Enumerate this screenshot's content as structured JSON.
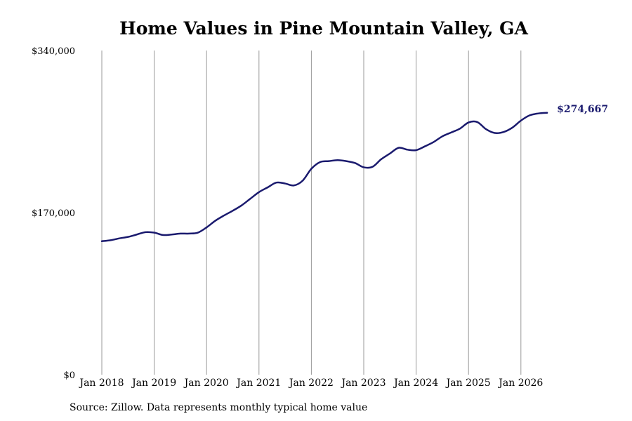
{
  "chart_data": {
    "type": "line",
    "title": "Home Values in Pine Mountain Valley, GA",
    "xlabel": "",
    "ylabel": "",
    "ylim": [
      0,
      340000
    ],
    "y_ticks": [
      "$0",
      "$170,000",
      "$340,000"
    ],
    "y_tick_values": [
      0,
      170000,
      340000
    ],
    "x_ticks": [
      "Jan 2018",
      "Jan 2019",
      "Jan 2020",
      "Jan 2021",
      "Jan 2022",
      "Jan 2023",
      "Jan 2024",
      "Jan 2025",
      "Jan 2026"
    ],
    "grid": "vertical",
    "line_color": "#1a1a6e",
    "grid_color": "#999999",
    "end_label": "$274,667",
    "series": [
      {
        "x": [
          "2018-01",
          "2018-03",
          "2018-05",
          "2018-07",
          "2018-09",
          "2018-11",
          "2019-01",
          "2019-03",
          "2019-05",
          "2019-07",
          "2019-09",
          "2019-11",
          "2020-01",
          "2020-03",
          "2020-05",
          "2020-07",
          "2020-09",
          "2020-11",
          "2021-01",
          "2021-03",
          "2021-05",
          "2021-07",
          "2021-09",
          "2021-11",
          "2022-01",
          "2022-03",
          "2022-05",
          "2022-07",
          "2022-09",
          "2022-11",
          "2023-01",
          "2023-03",
          "2023-05",
          "2023-07",
          "2023-09",
          "2023-11",
          "2024-01",
          "2024-03",
          "2024-05",
          "2024-07",
          "2024-09",
          "2024-11",
          "2025-01",
          "2025-03",
          "2025-05",
          "2025-07",
          "2025-09",
          "2025-11",
          "2026-01",
          "2026-03",
          "2026-05",
          "2026-07"
        ],
        "values": [
          140000,
          141000,
          143000,
          144500,
          147000,
          149500,
          149000,
          146500,
          147000,
          148000,
          148000,
          149000,
          154500,
          161500,
          167000,
          172000,
          177500,
          184500,
          191500,
          196500,
          201500,
          200500,
          198500,
          203500,
          216000,
          223000,
          224000,
          225000,
          224000,
          222000,
          217500,
          218000,
          226000,
          232000,
          238000,
          236000,
          235500,
          239500,
          244000,
          250000,
          254000,
          258000,
          264500,
          265000,
          257500,
          253500,
          254500,
          259000,
          266500,
          272000,
          274000,
          274667
        ]
      }
    ]
  },
  "source_text": "Source: Zillow. Data represents monthly typical home value"
}
